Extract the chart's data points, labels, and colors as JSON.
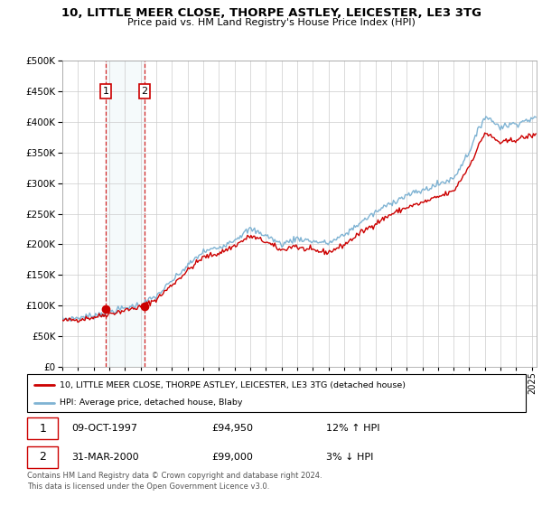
{
  "title": "10, LITTLE MEER CLOSE, THORPE ASTLEY, LEICESTER, LE3 3TG",
  "subtitle": "Price paid vs. HM Land Registry's House Price Index (HPI)",
  "sale1_date": "09-OCT-1997",
  "sale1_price": 94950,
  "sale1_hpi_pct": "12% ↑ HPI",
  "sale2_date": "31-MAR-2000",
  "sale2_price": 99000,
  "sale2_hpi_pct": "3% ↓ HPI",
  "legend_line1": "10, LITTLE MEER CLOSE, THORPE ASTLEY, LEICESTER, LE3 3TG (detached house)",
  "legend_line2": "HPI: Average price, detached house, Blaby",
  "footer": "Contains HM Land Registry data © Crown copyright and database right 2024.\nThis data is licensed under the Open Government Licence v3.0.",
  "line_color_red": "#cc0000",
  "line_color_blue": "#7fb3d3",
  "ylim": [
    0,
    500000
  ],
  "yticks": [
    0,
    50000,
    100000,
    150000,
    200000,
    250000,
    300000,
    350000,
    400000,
    450000,
    500000
  ],
  "xlim_start": 1995.0,
  "xlim_end": 2025.3,
  "sale1_x": 1997.77,
  "sale2_x": 2000.25,
  "background_color": "#ffffff",
  "grid_color": "#cccccc",
  "hpi_base": {
    "1995": 78000,
    "1996": 80000,
    "1997": 84000,
    "1998": 90000,
    "1999": 96000,
    "2000": 102000,
    "2001": 115000,
    "2002": 140000,
    "2003": 165000,
    "2004": 188000,
    "2005": 195000,
    "2006": 208000,
    "2007": 225000,
    "2008": 215000,
    "2009": 200000,
    "2010": 210000,
    "2011": 205000,
    "2012": 202000,
    "2013": 215000,
    "2014": 235000,
    "2015": 252000,
    "2016": 268000,
    "2017": 280000,
    "2018": 288000,
    "2019": 298000,
    "2020": 308000,
    "2021": 352000,
    "2022": 410000,
    "2023": 392000,
    "2024": 398000,
    "2025": 405000
  }
}
